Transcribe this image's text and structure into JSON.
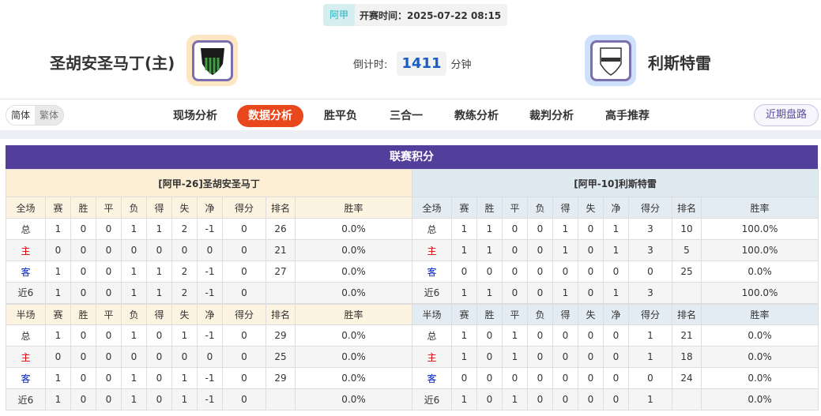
{
  "header": {
    "league": "阿甲",
    "kickoff": "开赛时间：2025-07-22 08:15",
    "home_team": "圣胡安圣马丁(主)",
    "away_team": "利斯特雷",
    "countdown_label": "倒计时:",
    "countdown_value": "1411",
    "countdown_unit": "分钟"
  },
  "nav": {
    "lang": [
      "简体",
      "繁体"
    ],
    "tabs": [
      "现场分析",
      "数据分析",
      "胜平负",
      "三合一",
      "教练分析",
      "裁判分析",
      "高手推荐"
    ],
    "active_tab": "数据分析",
    "recent": "近期盘路"
  },
  "standings": {
    "title": "联赛积分",
    "columns_full": [
      "全场",
      "赛",
      "胜",
      "平",
      "负",
      "得",
      "失",
      "净",
      "得分",
      "排名",
      "胜率"
    ],
    "columns_half": [
      "半场",
      "赛",
      "胜",
      "平",
      "负",
      "得",
      "失",
      "净",
      "得分",
      "排名",
      "胜率"
    ],
    "home": {
      "title": "[阿甲-26]圣胡安圣马丁",
      "full": [
        [
          "总",
          "1",
          "0",
          "0",
          "1",
          "1",
          "2",
          "-1",
          "0",
          "26",
          "0.0%"
        ],
        [
          "主",
          "0",
          "0",
          "0",
          "0",
          "0",
          "0",
          "0",
          "0",
          "21",
          "0.0%"
        ],
        [
          "客",
          "1",
          "0",
          "0",
          "1",
          "1",
          "2",
          "-1",
          "0",
          "27",
          "0.0%"
        ],
        [
          "近6",
          "1",
          "0",
          "0",
          "1",
          "1",
          "2",
          "-1",
          "0",
          "",
          "0.0%"
        ]
      ],
      "half": [
        [
          "总",
          "1",
          "0",
          "0",
          "1",
          "0",
          "1",
          "-1",
          "0",
          "29",
          "0.0%"
        ],
        [
          "主",
          "0",
          "0",
          "0",
          "0",
          "0",
          "0",
          "0",
          "0",
          "25",
          "0.0%"
        ],
        [
          "客",
          "1",
          "0",
          "0",
          "1",
          "0",
          "1",
          "-1",
          "0",
          "29",
          "0.0%"
        ],
        [
          "近6",
          "1",
          "0",
          "0",
          "1",
          "0",
          "1",
          "-1",
          "0",
          "",
          "0.0%"
        ]
      ]
    },
    "away": {
      "title": "[阿甲-10]利斯特雷",
      "full": [
        [
          "总",
          "1",
          "1",
          "0",
          "0",
          "1",
          "0",
          "1",
          "3",
          "10",
          "100.0%"
        ],
        [
          "主",
          "1",
          "1",
          "0",
          "0",
          "1",
          "0",
          "1",
          "3",
          "5",
          "100.0%"
        ],
        [
          "客",
          "0",
          "0",
          "0",
          "0",
          "0",
          "0",
          "0",
          "0",
          "25",
          "0.0%"
        ],
        [
          "近6",
          "1",
          "1",
          "0",
          "0",
          "1",
          "0",
          "1",
          "3",
          "",
          "100.0%"
        ]
      ],
      "half": [
        [
          "总",
          "1",
          "0",
          "1",
          "0",
          "0",
          "0",
          "0",
          "1",
          "21",
          "0.0%"
        ],
        [
          "主",
          "1",
          "0",
          "1",
          "0",
          "0",
          "0",
          "0",
          "1",
          "18",
          "0.0%"
        ],
        [
          "客",
          "0",
          "0",
          "0",
          "0",
          "0",
          "0",
          "0",
          "0",
          "24",
          "0.0%"
        ],
        [
          "近6",
          "1",
          "0",
          "1",
          "0",
          "0",
          "0",
          "0",
          "1",
          "",
          "0.0%"
        ]
      ]
    }
  },
  "colors": {
    "title_bar": "#523f9b",
    "active_tab": "#e8481c",
    "home_label": "#dd0000",
    "away_label": "#0020c8"
  }
}
